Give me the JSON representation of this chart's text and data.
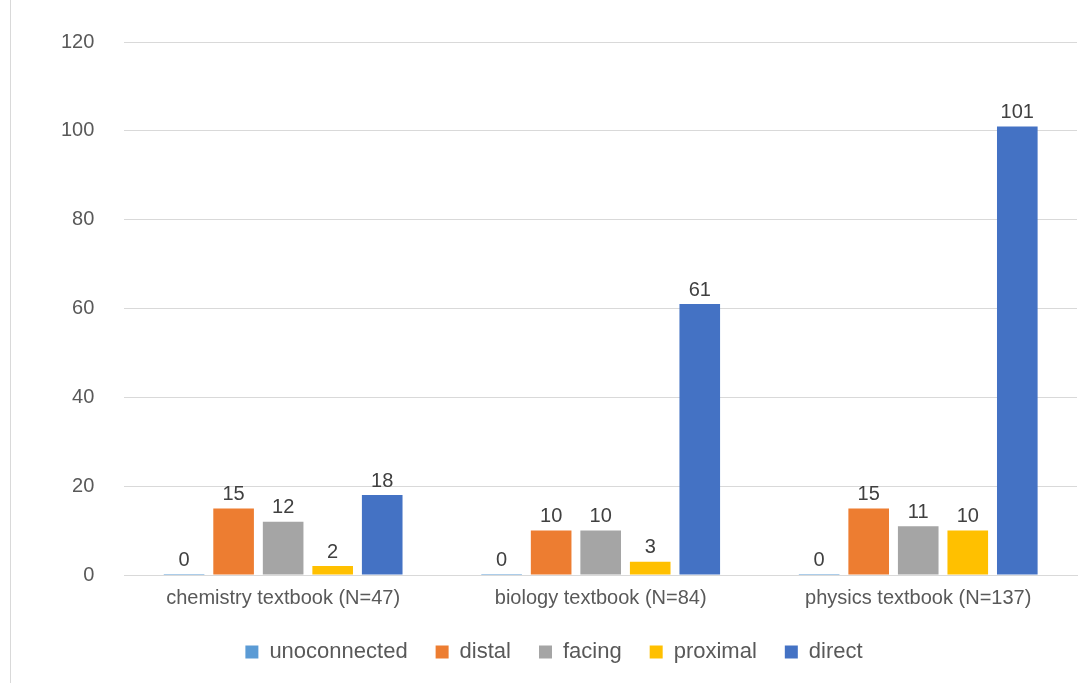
{
  "chart_data": {
    "type": "bar",
    "categories": [
      "chemistry textbook (N=47)",
      "biology textbook (N=84)",
      "physics textbook (N=137)"
    ],
    "series": [
      {
        "name": "unoconnected",
        "color": "#5b9bd5",
        "values": [
          0,
          0,
          0
        ]
      },
      {
        "name": "distal",
        "color": "#ed7d31",
        "values": [
          15,
          10,
          15
        ]
      },
      {
        "name": "facing",
        "color": "#a5a5a5",
        "values": [
          12,
          10,
          11
        ]
      },
      {
        "name": "proximal",
        "color": "#ffc000",
        "values": [
          2,
          3,
          10
        ]
      },
      {
        "name": "direct",
        "color": "#4472c4",
        "values": [
          18,
          61,
          101
        ]
      }
    ],
    "ylim": [
      0,
      120
    ],
    "yticks": [
      0,
      20,
      40,
      60,
      80,
      100,
      120
    ],
    "grid": "y",
    "legend": "bottom",
    "data_labels": true
  }
}
